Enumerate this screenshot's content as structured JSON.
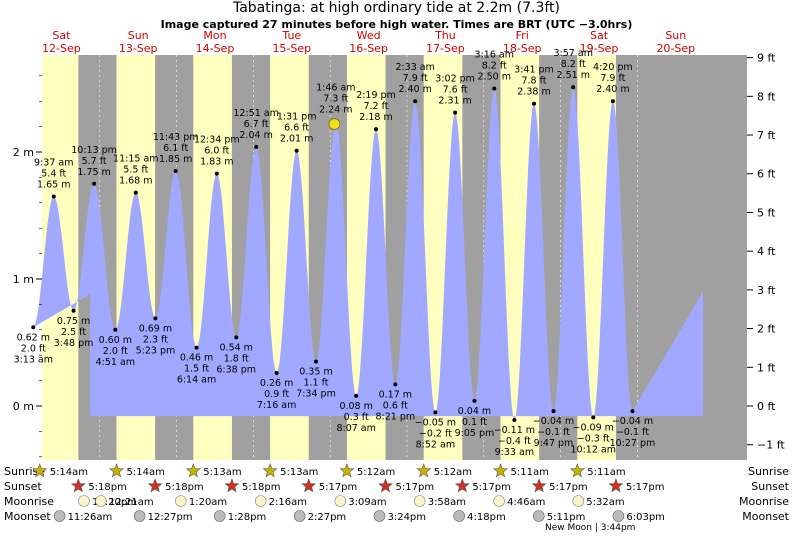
{
  "title": "Tabatinga: at high  ordinary tide at 2.2m (7.3ft)",
  "subtitle": "Image captured 27 minutes before high water. Times are BRT (UTC −3.0hrs)",
  "days": [
    {
      "dow": "Sat",
      "date": "12-Sep"
    },
    {
      "dow": "Sun",
      "date": "13-Sep"
    },
    {
      "dow": "Mon",
      "date": "14-Sep"
    },
    {
      "dow": "Tue",
      "date": "15-Sep"
    },
    {
      "dow": "Wed",
      "date": "16-Sep"
    },
    {
      "dow": "Thu",
      "date": "17-Sep"
    },
    {
      "dow": "Fri",
      "date": "18-Sep"
    },
    {
      "dow": "Sat",
      "date": "19-Sep"
    },
    {
      "dow": "Sun",
      "date": "20-Sep"
    }
  ],
  "chart_data": {
    "type": "area",
    "ylabel_left": "m",
    "ylabel_right": "ft",
    "ylim_m": [
      -0.5,
      2.75
    ],
    "left_ticks": [
      "0 m",
      "1 m",
      "2 m"
    ],
    "right_ticks": [
      "−1 ft",
      "0 ft",
      "1 ft",
      "2 ft",
      "3 ft",
      "4 ft",
      "5 ft",
      "6 ft",
      "7 ft",
      "8 ft",
      "9 ft"
    ],
    "colors": {
      "night": "#a0a0a0",
      "day": "#ffffc0",
      "water": "#a0a8ff",
      "sun_now": "#f0e020",
      "day_label": "#cc0000"
    },
    "tides": [
      {
        "type": "low",
        "time": "3:13 am",
        "m": "0.62 m",
        "ft": "2.0 ft",
        "value": 0.62,
        "day": 0,
        "hour": 3.217
      },
      {
        "type": "high",
        "time": "9:37 am",
        "m": "1.65 m",
        "ft": "5.4 ft",
        "value": 1.65,
        "day": 0,
        "hour": 9.617
      },
      {
        "type": "low",
        "time": "3:48 pm",
        "m": "0.75 m",
        "ft": "2.5 ft",
        "value": 0.75,
        "day": 0,
        "hour": 15.8
      },
      {
        "type": "high",
        "time": "10:13 pm",
        "m": "1.75 m",
        "ft": "5.7 ft",
        "value": 1.75,
        "day": 0,
        "hour": 22.217
      },
      {
        "type": "low",
        "time": "4:51 am",
        "m": "0.60 m",
        "ft": "2.0 ft",
        "value": 0.6,
        "day": 1,
        "hour": 4.85
      },
      {
        "type": "high",
        "time": "11:15 am",
        "m": "1.68 m",
        "ft": "5.5 ft",
        "value": 1.68,
        "day": 1,
        "hour": 11.25
      },
      {
        "type": "low",
        "time": "5:23 pm",
        "m": "0.69 m",
        "ft": "2.3 ft",
        "value": 0.69,
        "day": 1,
        "hour": 17.383
      },
      {
        "type": "high",
        "time": "11:43 pm",
        "m": "1.85 m",
        "ft": "6.1 ft",
        "value": 1.85,
        "day": 1,
        "hour": 23.717
      },
      {
        "type": "low",
        "time": "6:14 am",
        "m": "0.46 m",
        "ft": "1.5 ft",
        "value": 0.46,
        "day": 2,
        "hour": 6.233
      },
      {
        "type": "high",
        "time": "12:34 pm",
        "m": "1.83 m",
        "ft": "6.0 ft",
        "value": 1.83,
        "day": 2,
        "hour": 12.567
      },
      {
        "type": "low",
        "time": "6:38 pm",
        "m": "0.54 m",
        "ft": "1.8 ft",
        "value": 0.54,
        "day": 2,
        "hour": 18.633
      },
      {
        "type": "high",
        "time": "12:51 am",
        "m": "2.04 m",
        "ft": "6.7 ft",
        "value": 2.04,
        "day": 3,
        "hour": 0.85
      },
      {
        "type": "low",
        "time": "7:16 am",
        "m": "0.26 m",
        "ft": "0.9 ft",
        "value": 0.26,
        "day": 3,
        "hour": 7.267
      },
      {
        "type": "high",
        "time": "1:31 pm",
        "m": "2.01 m",
        "ft": "6.6 ft",
        "value": 2.01,
        "day": 3,
        "hour": 13.517
      },
      {
        "type": "low",
        "time": "7:34 pm",
        "m": "0.35 m",
        "ft": "1.1 ft",
        "value": 0.35,
        "day": 3,
        "hour": 19.567
      },
      {
        "type": "high",
        "time": "1:46 am",
        "m": "2.24 m",
        "ft": "7.3 ft",
        "value": 2.24,
        "day": 4,
        "hour": 1.767
      },
      {
        "type": "low",
        "time": "8:07 am",
        "m": "0.08 m",
        "ft": "0.3 ft",
        "value": 0.08,
        "day": 4,
        "hour": 8.117
      },
      {
        "type": "high",
        "time": "2:19 pm",
        "m": "2.18 m",
        "ft": "7.2 ft",
        "value": 2.18,
        "day": 4,
        "hour": 14.317
      },
      {
        "type": "low",
        "time": "8:21 pm",
        "m": "0.17 m",
        "ft": "0.6 ft",
        "value": 0.17,
        "day": 4,
        "hour": 20.35
      },
      {
        "type": "high",
        "time": "2:33 am",
        "m": "2.40 m",
        "ft": "7.9 ft",
        "value": 2.4,
        "day": 5,
        "hour": 2.55
      },
      {
        "type": "low",
        "time": "8:52 am",
        "m": "−0.05 m",
        "ft": "−0.2 ft",
        "value": -0.05,
        "day": 5,
        "hour": 8.867
      },
      {
        "type": "high",
        "time": "3:02 pm",
        "m": "2.31 m",
        "ft": "7.6 ft",
        "value": 2.31,
        "day": 5,
        "hour": 15.033
      },
      {
        "type": "low",
        "time": "9:05 pm",
        "m": "0.04 m",
        "ft": "0.1 ft",
        "value": 0.04,
        "day": 5,
        "hour": 21.083
      },
      {
        "type": "high",
        "time": "3:16 am",
        "m": "2.50 m",
        "ft": "8.2 ft",
        "value": 2.5,
        "day": 6,
        "hour": 3.267
      },
      {
        "type": "low",
        "time": "9:33 am",
        "m": "−0.11 m",
        "ft": "−0.4 ft",
        "value": -0.11,
        "day": 6,
        "hour": 9.55
      },
      {
        "type": "high",
        "time": "3:41 pm",
        "m": "2.38 m",
        "ft": "7.8 ft",
        "value": 2.38,
        "day": 6,
        "hour": 15.683
      },
      {
        "type": "low",
        "time": "9:47 pm",
        "m": "−0.04 m",
        "ft": "−0.1 ft",
        "value": -0.04,
        "day": 6,
        "hour": 21.783
      },
      {
        "type": "high",
        "time": "3:57 am",
        "m": "2.51 m",
        "ft": "8.2 ft",
        "value": 2.51,
        "day": 7,
        "hour": 3.95
      },
      {
        "type": "low",
        "time": "10:12 am",
        "m": "−0.09 m",
        "ft": "−0.3 ft",
        "value": -0.09,
        "day": 7,
        "hour": 10.2
      },
      {
        "type": "high",
        "time": "4:20 pm",
        "m": "2.40 m",
        "ft": "7.9 ft",
        "value": 2.4,
        "day": 7,
        "hour": 16.333
      },
      {
        "type": "low",
        "time": "10:27 pm",
        "m": "−0.04 m",
        "ft": "−0.1 ft",
        "value": -0.04,
        "day": 7,
        "hour": 22.45
      }
    ],
    "current_position": {
      "day": 4,
      "hour": 1.317,
      "m": 2.22
    }
  },
  "rows": {
    "labels": [
      "Sunrise",
      "Sunset",
      "Moonrise",
      "Moonset"
    ],
    "sunrise": [
      "5:14am",
      "5:14am",
      "5:13am",
      "5:13am",
      "5:12am",
      "5:12am",
      "5:11am",
      "5:11am"
    ],
    "sunset": [
      "5:18pm",
      "5:18pm",
      "5:18pm",
      "5:17pm",
      "5:17pm",
      "5:17pm",
      "5:17pm",
      "5:17pm"
    ],
    "moonrise": [
      "11:20pm",
      "12:21am",
      "1:20am",
      "2:16am",
      "3:09am",
      "3:58am",
      "4:46am",
      "5:32am"
    ],
    "moonset": [
      "11:26am",
      "12:27pm",
      "1:28pm",
      "2:27pm",
      "3:24pm",
      "4:18pm",
      "5:11pm",
      "6:03pm"
    ],
    "new_moon": "New Moon",
    "new_moon_time": "3:44pm"
  }
}
